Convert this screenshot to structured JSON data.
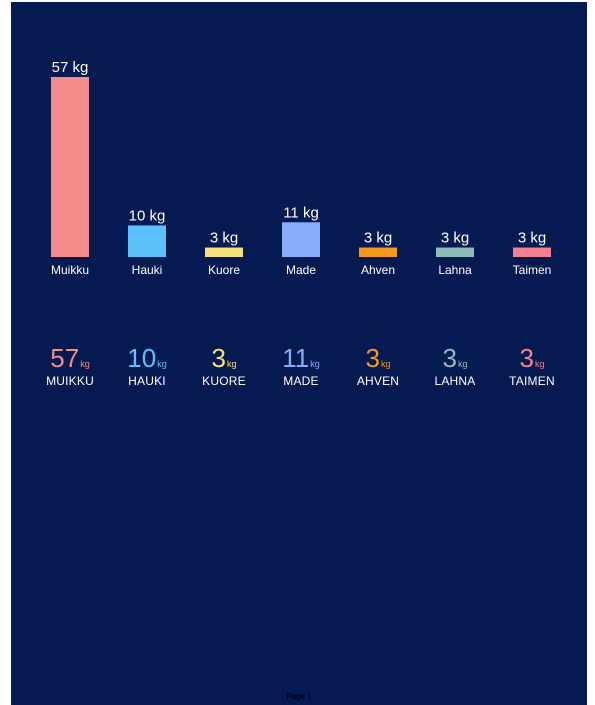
{
  "chart_data": {
    "type": "bar",
    "categories": [
      "Muikku",
      "Hauki",
      "Kuore",
      "Made",
      "Ahven",
      "Lahna",
      "Taimen"
    ],
    "values": [
      57,
      10,
      3,
      11,
      3,
      3,
      3
    ],
    "unit": "kg",
    "colors": [
      "#f58a8a",
      "#5cc0fa",
      "#f5e27a",
      "#8aabfa",
      "#f59a1c",
      "#8cbcbc",
      "#f58090"
    ],
    "title": "",
    "xlabel": "",
    "ylabel": "",
    "ylim": [
      0,
      57
    ],
    "grid": false,
    "legend": "none"
  },
  "stats": [
    {
      "value": "57",
      "unit": "kg",
      "name": "MUIKKU",
      "color": "#f58a8a"
    },
    {
      "value": "10",
      "unit": "kg",
      "name": "HAUKI",
      "color": "#5cc0fa"
    },
    {
      "value": "3",
      "unit": "kg",
      "name": "KUORE",
      "color": "#f5e27a"
    },
    {
      "value": "11",
      "unit": "kg",
      "name": "MADE",
      "color": "#8aabfa"
    },
    {
      "value": "3",
      "unit": "kg",
      "name": "AHVEN",
      "color": "#f59a1c"
    },
    {
      "value": "3",
      "unit": "kg",
      "name": "LAHNA",
      "color": "#8cbcbc"
    },
    {
      "value": "3",
      "unit": "kg",
      "name": "TAIMEN",
      "color": "#f58090"
    }
  ],
  "page_label": "Page 1"
}
